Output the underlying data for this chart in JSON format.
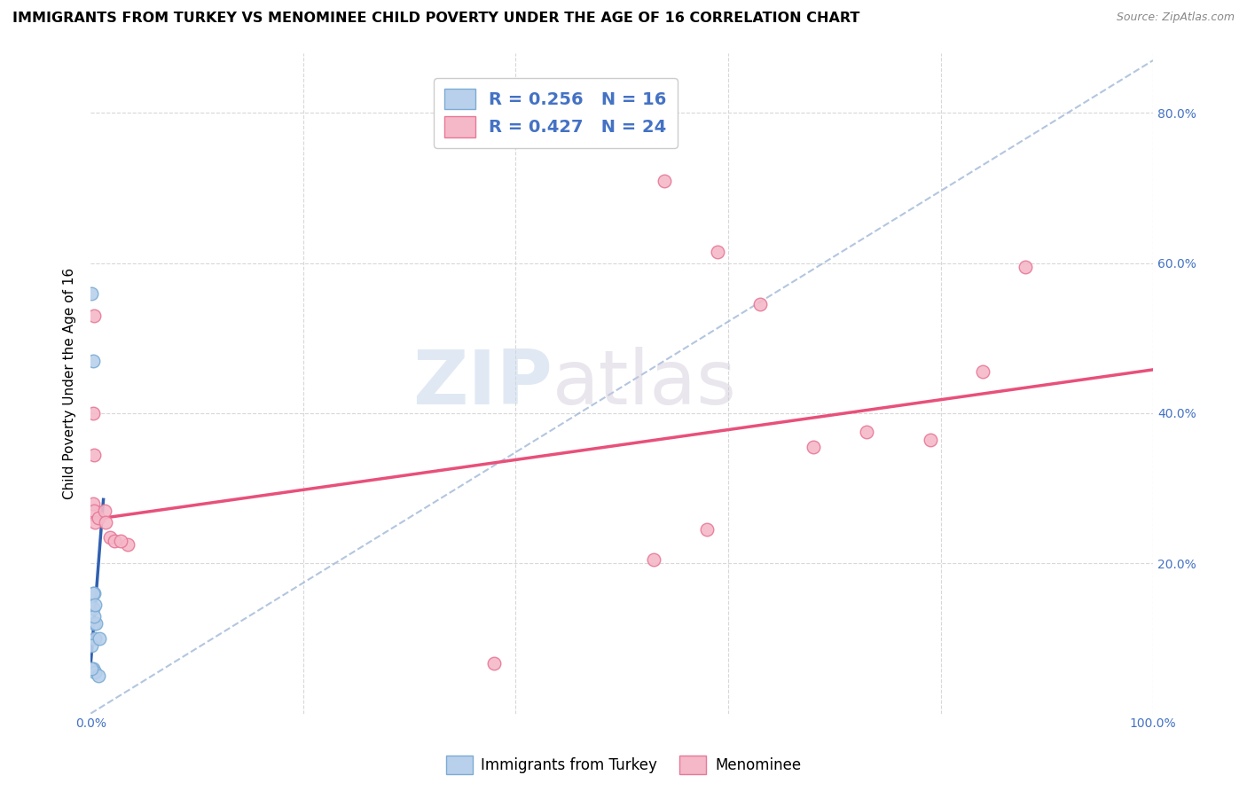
{
  "title": "IMMIGRANTS FROM TURKEY VS MENOMINEE CHILD POVERTY UNDER THE AGE OF 16 CORRELATION CHART",
  "source": "Source: ZipAtlas.com",
  "ylabel": "Child Poverty Under the Age of 16",
  "xlim": [
    0,
    1.0
  ],
  "ylim": [
    0,
    0.88
  ],
  "xticks": [
    0.0,
    0.2,
    0.4,
    0.6,
    0.8,
    1.0
  ],
  "xticklabels": [
    "0.0%",
    "",
    "",
    "",
    "",
    "100.0%"
  ],
  "yticks": [
    0.0,
    0.2,
    0.4,
    0.6,
    0.8
  ],
  "yticklabels_right": [
    "",
    "20.0%",
    "40.0%",
    "60.0%",
    "80.0%"
  ],
  "blue_scatter_x": [
    0.002,
    0.003,
    0.004,
    0.003,
    0.002,
    0.001,
    0.005,
    0.003,
    0.002,
    0.004,
    0.002,
    0.004,
    0.007,
    0.001,
    0.001,
    0.008
  ],
  "blue_scatter_y": [
    0.14,
    0.12,
    0.1,
    0.16,
    0.47,
    0.56,
    0.12,
    0.13,
    0.16,
    0.145,
    0.06,
    0.055,
    0.05,
    0.06,
    0.09,
    0.1
  ],
  "pink_scatter_x": [
    0.002,
    0.003,
    0.004,
    0.007,
    0.013,
    0.014,
    0.018,
    0.022,
    0.035,
    0.028,
    0.54,
    0.59,
    0.63,
    0.73,
    0.79,
    0.84,
    0.88,
    0.68,
    0.58,
    0.53,
    0.38,
    0.003,
    0.002,
    0.003
  ],
  "pink_scatter_y": [
    0.28,
    0.27,
    0.255,
    0.26,
    0.27,
    0.255,
    0.235,
    0.23,
    0.225,
    0.23,
    0.71,
    0.615,
    0.545,
    0.375,
    0.365,
    0.455,
    0.595,
    0.355,
    0.245,
    0.205,
    0.067,
    0.53,
    0.4,
    0.345
  ],
  "blue_solid_line_x": [
    0.0,
    0.012
  ],
  "blue_solid_line_y": [
    0.065,
    0.285
  ],
  "blue_dashed_line_x": [
    0.0,
    1.0
  ],
  "blue_dashed_line_y": [
    0.0,
    0.87
  ],
  "pink_line_x": [
    0.0,
    1.0
  ],
  "pink_line_y": [
    0.258,
    0.458
  ],
  "blue_R": "0.256",
  "blue_N": "16",
  "pink_R": "0.427",
  "pink_N": "24",
  "blue_fill_color": "#b8d0eb",
  "blue_edge_color": "#7bacd4",
  "pink_fill_color": "#f4b8c8",
  "pink_edge_color": "#e87898",
  "blue_solid_line_color": "#3060b0",
  "blue_dashed_line_color": "#a0b8d8",
  "pink_line_color": "#e8507a",
  "marker_size": 110,
  "title_fontsize": 11.5,
  "axis_label_fontsize": 11,
  "tick_fontsize": 10,
  "legend_fontsize": 14,
  "watermark_zip": "ZIP",
  "watermark_atlas": "atlas",
  "background_color": "#ffffff",
  "grid_color": "#d8d8d8"
}
